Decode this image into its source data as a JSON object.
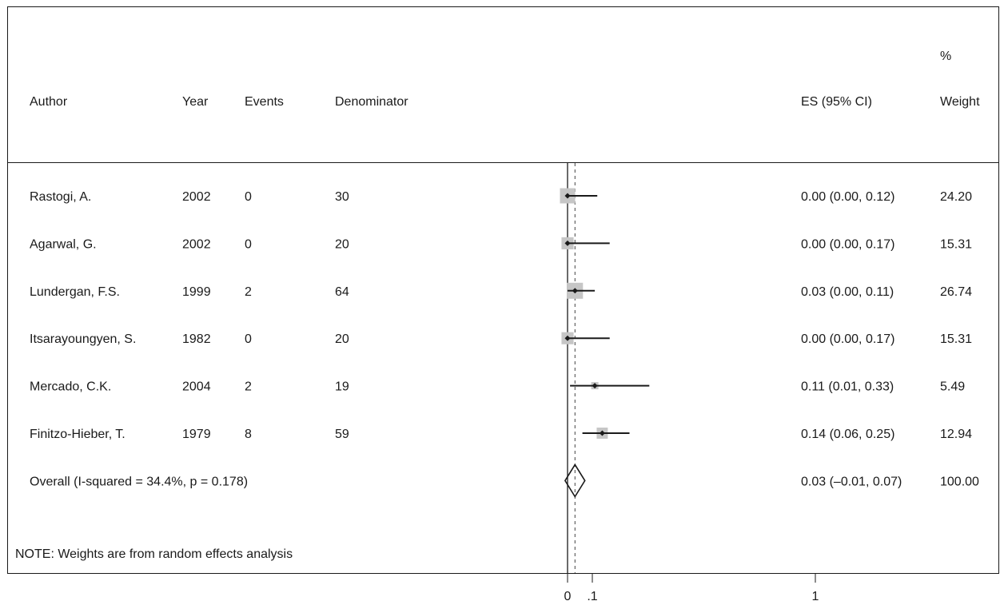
{
  "chart_data": {
    "type": "forest",
    "columns": {
      "author": "Author",
      "year": "Year",
      "events": "Events",
      "denominator": "Denominator",
      "es": "ES (95% CI)",
      "weight_top": "%",
      "weight": "Weight"
    },
    "studies": [
      {
        "author": "Rastogi, A.",
        "year": "2002",
        "events": "0",
        "denominator": "30",
        "es": 0.0,
        "lo": 0.0,
        "hi": 0.12,
        "es_text": "0.00 (0.00, 0.12)",
        "weight": 24.2,
        "weight_text": "24.20"
      },
      {
        "author": "Agarwal, G.",
        "year": "2002",
        "events": "0",
        "denominator": "20",
        "es": 0.0,
        "lo": 0.0,
        "hi": 0.17,
        "es_text": "0.00 (0.00, 0.17)",
        "weight": 15.31,
        "weight_text": "15.31"
      },
      {
        "author": "Lundergan, F.S.",
        "year": "1999",
        "events": "2",
        "denominator": "64",
        "es": 0.03,
        "lo": 0.0,
        "hi": 0.11,
        "es_text": "0.03 (0.00, 0.11)",
        "weight": 26.74,
        "weight_text": "26.74"
      },
      {
        "author": "Itsarayoungyen, S.",
        "year": "1982",
        "events": "0",
        "denominator": "20",
        "es": 0.0,
        "lo": 0.0,
        "hi": 0.17,
        "es_text": "0.00 (0.00, 0.17)",
        "weight": 15.31,
        "weight_text": "15.31"
      },
      {
        "author": "Mercado, C.K.",
        "year": "2004",
        "events": "2",
        "denominator": "19",
        "es": 0.11,
        "lo": 0.01,
        "hi": 0.33,
        "es_text": "0.11 (0.01, 0.33)",
        "weight": 5.49,
        "weight_text": "5.49"
      },
      {
        "author": "Finitzo-Hieber, T.",
        "year": "1979",
        "events": "8",
        "denominator": "59",
        "es": 0.14,
        "lo": 0.06,
        "hi": 0.25,
        "es_text": "0.14 (0.06, 0.25)",
        "weight": 12.94,
        "weight_text": "12.94"
      }
    ],
    "overall": {
      "label": "Overall  (I-squared = 34.4%, p = 0.178)",
      "es": 0.03,
      "lo": -0.01,
      "hi": 0.07,
      "es_text": "0.03 (–0.01, 0.07)",
      "weight_text": "100.00"
    },
    "note": "NOTE: Weights are from random effects analysis",
    "x_ticks": [
      {
        "value": 0,
        "label": "0"
      },
      {
        "value": 0.1,
        "label": ".1"
      },
      {
        "value": 1,
        "label": "1"
      }
    ],
    "null_line": 0,
    "overall_line": 0.03
  }
}
